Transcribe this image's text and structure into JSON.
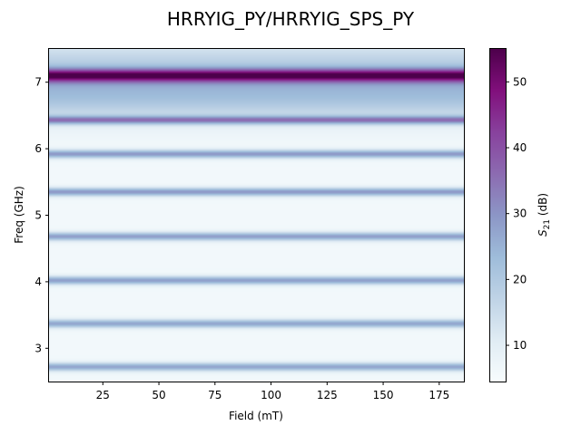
{
  "chart_data": {
    "type": "heatmap",
    "title": "HRRYIG_PY/HRRYIG_SPS_PY",
    "xlabel": "Field (mT)",
    "ylabel": "Freq (GHz)",
    "xlim": [
      1,
      186
    ],
    "ylim": [
      2.5,
      7.5
    ],
    "xticks": [
      25,
      50,
      75,
      100,
      125,
      150,
      175
    ],
    "yticks": [
      3,
      4,
      5,
      6,
      7
    ],
    "colorbar": {
      "label": "S21 (dB)",
      "label_main": "S",
      "label_sub": "21",
      "label_unit": " (dB)",
      "range": [
        4.5,
        55
      ],
      "ticks": [
        10,
        20,
        30,
        40,
        50
      ],
      "colormap": "BuPu"
    },
    "background_level_db": 6,
    "bands": [
      {
        "freq": 2.72,
        "peak_db": 27,
        "width_ghz": 0.045
      },
      {
        "freq": 3.37,
        "peak_db": 27,
        "width_ghz": 0.045
      },
      {
        "freq": 4.02,
        "peak_db": 28,
        "width_ghz": 0.045
      },
      {
        "freq": 4.68,
        "peak_db": 28,
        "width_ghz": 0.045
      },
      {
        "freq": 5.35,
        "peak_db": 29,
        "width_ghz": 0.045
      },
      {
        "freq": 5.92,
        "peak_db": 29,
        "width_ghz": 0.045
      },
      {
        "freq": 6.43,
        "peak_db": 30,
        "width_ghz": 0.045
      },
      {
        "freq": 7.1,
        "peak_db": 40,
        "width_ghz": 0.07
      }
    ],
    "broad_features": [
      {
        "freq": 7.1,
        "level_db": 14,
        "width_ghz": 0.35
      },
      {
        "freq": 6.75,
        "level_db": 8,
        "width_ghz": 0.25
      }
    ]
  }
}
